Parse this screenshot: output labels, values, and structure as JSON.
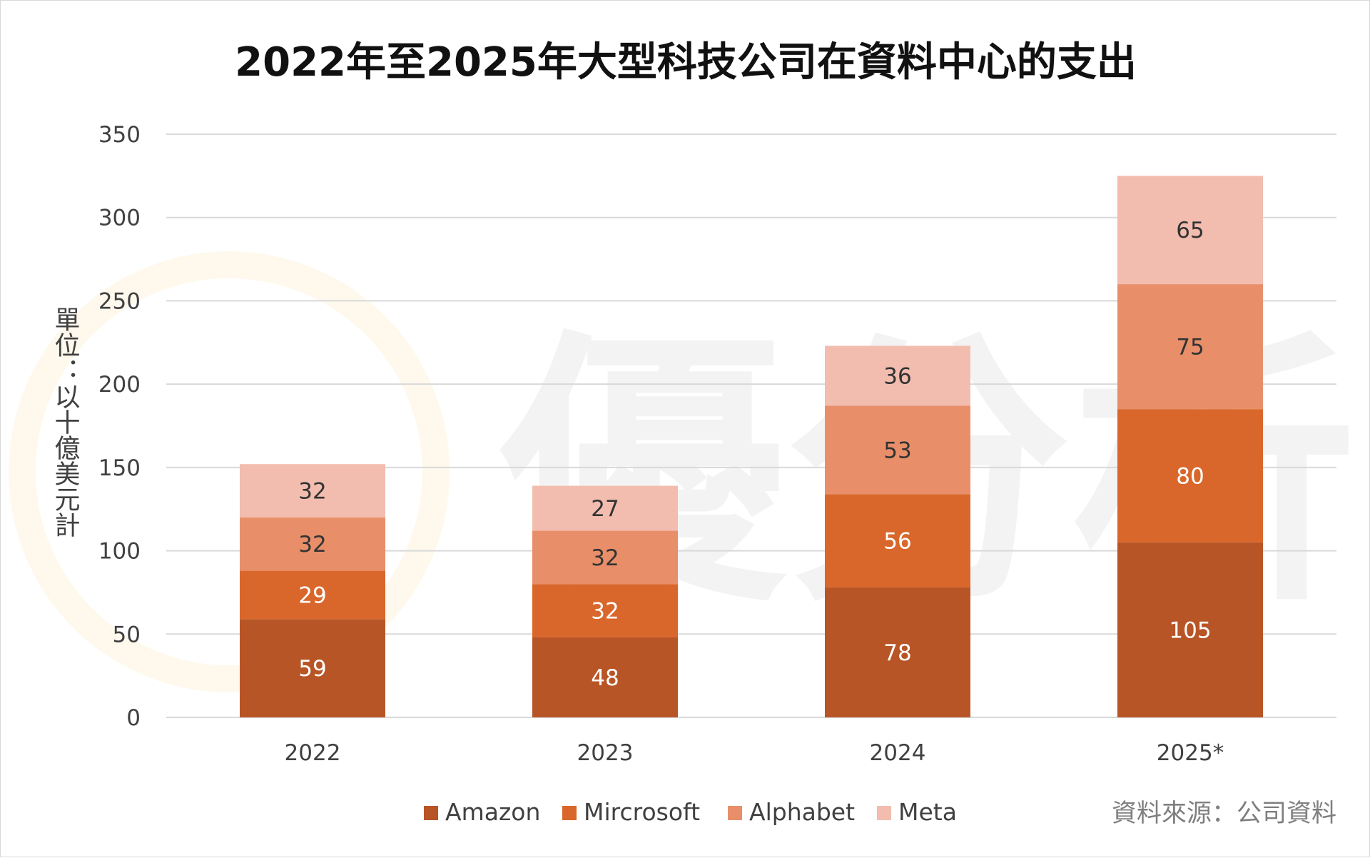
{
  "title": "2022年至2025年大型科技公司在資料中心的支出",
  "ylabel": "單位：以十億美元計",
  "source": "資料來源：公司資料",
  "watermark": "優分析",
  "colors": {
    "Amazon": "#b85526",
    "Mircrosoft": "#d9672b",
    "Alphabet": "#e88f6a",
    "Meta": "#f2bdaf",
    "grid": "#d9d9d9",
    "dark_label": "#333333",
    "light_label": "#ffffff",
    "watermark_ring": "#f6c342"
  },
  "chart_data": {
    "type": "bar",
    "stacked": true,
    "categories": [
      "2022",
      "2023",
      "2024",
      "2025*"
    ],
    "series": [
      {
        "name": "Amazon",
        "values": [
          59,
          48,
          78,
          105
        ]
      },
      {
        "name": "Mircrosoft",
        "values": [
          29,
          32,
          56,
          80
        ]
      },
      {
        "name": "Alphabet",
        "values": [
          32,
          32,
          53,
          75
        ]
      },
      {
        "name": "Meta",
        "values": [
          32,
          27,
          36,
          65
        ]
      }
    ],
    "title": "2022年至2025年大型科技公司在資料中心的支出",
    "xlabel": "",
    "ylabel": "單位：以十億美元計",
    "ylim": [
      0,
      350
    ],
    "yticks": [
      0,
      50,
      100,
      150,
      200,
      250,
      300,
      350
    ],
    "grid": true,
    "legend_position": "bottom"
  }
}
